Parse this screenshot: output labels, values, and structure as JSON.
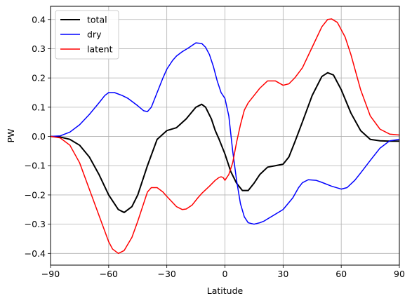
{
  "chart_data": {
    "type": "line",
    "xlabel": "Latitude",
    "ylabel": "PW",
    "xlim": [
      -90,
      90
    ],
    "ylim": [
      -0.44,
      0.445
    ],
    "xticks": [
      -90,
      -60,
      -30,
      0,
      30,
      60,
      90
    ],
    "yticks": [
      -0.4,
      -0.3,
      -0.2,
      -0.1,
      0.0,
      0.1,
      0.2,
      0.3,
      0.4
    ],
    "xtick_labels": [
      "−90",
      "−60",
      "−30",
      "0",
      "30",
      "60",
      "90"
    ],
    "ytick_labels": [
      "−0.4",
      "−0.3",
      "−0.2",
      "−0.1",
      "0.0",
      "0.1",
      "0.2",
      "0.3",
      "0.4"
    ],
    "grid": true,
    "legend_position": "upper-left",
    "series": [
      {
        "name": "total",
        "color": "#000000",
        "x": [
          -90,
          -85,
          -80,
          -75,
          -70,
          -65,
          -60,
          -55,
          -52,
          -48,
          -45,
          -40,
          -35,
          -30,
          -25,
          -20,
          -15,
          -12,
          -10,
          -7,
          -5,
          -3,
          0,
          3,
          6,
          9,
          12,
          15,
          18,
          22,
          26,
          30,
          33,
          36,
          40,
          45,
          50,
          53,
          56,
          60,
          65,
          70,
          75,
          80,
          85,
          90
        ],
        "values": [
          0.0,
          -0.002,
          -0.01,
          -0.03,
          -0.07,
          -0.13,
          -0.2,
          -0.25,
          -0.26,
          -0.24,
          -0.2,
          -0.1,
          -0.01,
          0.02,
          0.03,
          0.06,
          0.1,
          0.11,
          0.1,
          0.06,
          0.02,
          -0.01,
          -0.06,
          -0.12,
          -0.16,
          -0.185,
          -0.185,
          -0.16,
          -0.13,
          -0.105,
          -0.1,
          -0.095,
          -0.07,
          -0.02,
          0.05,
          0.14,
          0.205,
          0.218,
          0.21,
          0.16,
          0.08,
          0.02,
          -0.01,
          -0.015,
          -0.016,
          -0.016
        ]
      },
      {
        "name": "dry",
        "color": "#0000ff",
        "x": [
          -90,
          -85,
          -80,
          -75,
          -70,
          -65,
          -62,
          -60,
          -57,
          -53,
          -50,
          -45,
          -42,
          -40,
          -38,
          -35,
          -32,
          -30,
          -27,
          -25,
          -22,
          -19,
          -15,
          -12,
          -10,
          -8,
          -6,
          -4,
          -2,
          0,
          2,
          4,
          6,
          8,
          10,
          12,
          15,
          18,
          20,
          25,
          30,
          35,
          38,
          40,
          43,
          47,
          50,
          55,
          60,
          63,
          67,
          70,
          75,
          80,
          85,
          90
        ],
        "values": [
          0.0,
          0.002,
          0.015,
          0.04,
          0.075,
          0.115,
          0.14,
          0.15,
          0.15,
          0.14,
          0.13,
          0.105,
          0.088,
          0.085,
          0.1,
          0.15,
          0.2,
          0.23,
          0.26,
          0.275,
          0.29,
          0.302,
          0.32,
          0.318,
          0.305,
          0.28,
          0.24,
          0.19,
          0.15,
          0.13,
          0.07,
          -0.05,
          -0.15,
          -0.23,
          -0.275,
          -0.295,
          -0.3,
          -0.295,
          -0.29,
          -0.27,
          -0.25,
          -0.21,
          -0.175,
          -0.158,
          -0.148,
          -0.15,
          -0.157,
          -0.17,
          -0.18,
          -0.175,
          -0.15,
          -0.125,
          -0.082,
          -0.04,
          -0.015,
          -0.01
        ]
      },
      {
        "name": "latent",
        "color": "#ff0000",
        "x": [
          -90,
          -85,
          -80,
          -75,
          -70,
          -65,
          -60,
          -58,
          -55,
          -52,
          -48,
          -45,
          -42,
          -40,
          -38,
          -35,
          -32,
          -30,
          -25,
          -22,
          -20,
          -17,
          -14,
          -12,
          -8,
          -5,
          -3,
          -2,
          -1,
          0,
          2,
          4,
          6,
          8,
          10,
          12,
          15,
          18,
          22,
          26,
          30,
          33,
          36,
          40,
          45,
          50,
          53,
          55,
          58,
          62,
          65,
          70,
          75,
          80,
          85,
          90
        ],
        "values": [
          0.0,
          -0.005,
          -0.03,
          -0.09,
          -0.18,
          -0.27,
          -0.36,
          -0.385,
          -0.4,
          -0.39,
          -0.345,
          -0.29,
          -0.23,
          -0.19,
          -0.175,
          -0.175,
          -0.19,
          -0.205,
          -0.24,
          -0.25,
          -0.248,
          -0.235,
          -0.21,
          -0.195,
          -0.17,
          -0.15,
          -0.14,
          -0.138,
          -0.14,
          -0.15,
          -0.13,
          -0.09,
          -0.02,
          0.04,
          0.09,
          0.115,
          0.14,
          0.165,
          0.19,
          0.19,
          0.175,
          0.18,
          0.2,
          0.235,
          0.305,
          0.375,
          0.4,
          0.402,
          0.39,
          0.34,
          0.28,
          0.16,
          0.07,
          0.025,
          0.008,
          0.005
        ]
      }
    ]
  }
}
